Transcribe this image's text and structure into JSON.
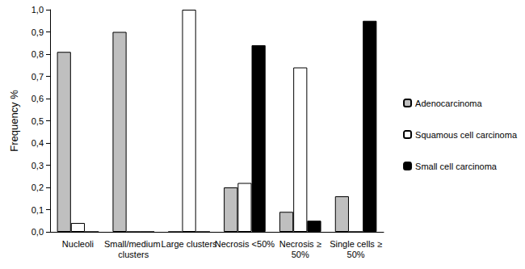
{
  "chart_data": {
    "type": "bar",
    "y_label": "Frequency %",
    "categories": [
      "Nucleoli",
      "Small/medium clusters",
      "Large clusters",
      "Necrosis <50%",
      "Necrosis ≥50%",
      "Single cells ≥50%"
    ],
    "series": [
      {
        "name": "Adenocarcinoma",
        "color": "#bfbfbf",
        "values": [
          0.81,
          0.9,
          0,
          0.2,
          0.09,
          0.16
        ]
      },
      {
        "name": "Squamous cell carcinoma",
        "color": "#ffffff",
        "values": [
          0.04,
          0,
          1.0,
          0.22,
          0.74,
          0
        ]
      },
      {
        "name": "Small cell carcinoma",
        "color": "#000000",
        "values": [
          0,
          0,
          0,
          0.84,
          0.05,
          0.95
        ]
      }
    ],
    "ylim": [
      0,
      1
    ],
    "yticks": [
      {
        "value": 0,
        "label": "0,0"
      },
      {
        "value": 0.1,
        "label": "0,1"
      },
      {
        "value": 0.2,
        "label": "0,2"
      },
      {
        "value": 0.3,
        "label": "0,3"
      },
      {
        "value": 0.4,
        "label": "0,4"
      },
      {
        "value": 0.5,
        "label": "0,5"
      },
      {
        "value": 0.6,
        "label": "0,6"
      },
      {
        "value": 0.7,
        "label": "0,7"
      },
      {
        "value": 0.8,
        "label": "0,8"
      },
      {
        "value": 0.9,
        "label": "0,9"
      },
      {
        "value": 1,
        "label": "1,0"
      }
    ],
    "grid": false,
    "legend": "right"
  }
}
